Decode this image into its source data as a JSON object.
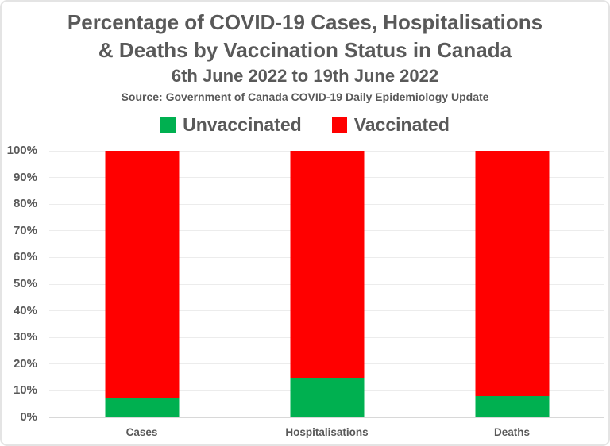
{
  "header": {
    "title_line1": "Percentage of COVID-19 Cases, Hospitalisations",
    "title_line2": "& Deaths by Vaccination Status in Canada",
    "subtitle": "6th June 2022 to 19th June 2022",
    "source": "Source: Government of Canada COVID-19 Daily Epidemiology Update"
  },
  "legend": {
    "items": [
      {
        "label": "Unvaccinated",
        "color": "#00B050"
      },
      {
        "label": "Vaccinated",
        "color": "#FF0000"
      }
    ]
  },
  "colors": {
    "text": "#595959",
    "unvaccinated_green": "#00B050",
    "vaccinated_red": "#FF0000",
    "gridline": "#ECECEC",
    "axis_line": "#D8D8D8",
    "frame_border": "#E4E4E4",
    "background": "#FFFFFF"
  },
  "chart_data": {
    "type": "bar",
    "stacked": true,
    "title": "Percentage of COVID-19 Cases, Hospitalisations & Deaths by Vaccination Status in Canada",
    "subtitle": "6th June 2022 to 19th June 2022",
    "source_note": "Source: Government of Canada COVID-19 Daily Epidemiology Update",
    "categories": [
      "Cases",
      "Hospitalisations",
      "Deaths"
    ],
    "series": [
      {
        "name": "Unvaccinated",
        "color": "#00B050",
        "values": [
          7,
          15,
          8
        ]
      },
      {
        "name": "Vaccinated",
        "color": "#FF0000",
        "values": [
          93,
          85,
          92
        ]
      }
    ],
    "xlabel": "",
    "ylabel": "",
    "ylim": [
      0,
      100
    ],
    "ytick_labels": [
      "0%",
      "10%",
      "20%",
      "30%",
      "40%",
      "50%",
      "60%",
      "70%",
      "80%",
      "90%",
      "100%"
    ],
    "grid": true,
    "legend_position": "top"
  }
}
